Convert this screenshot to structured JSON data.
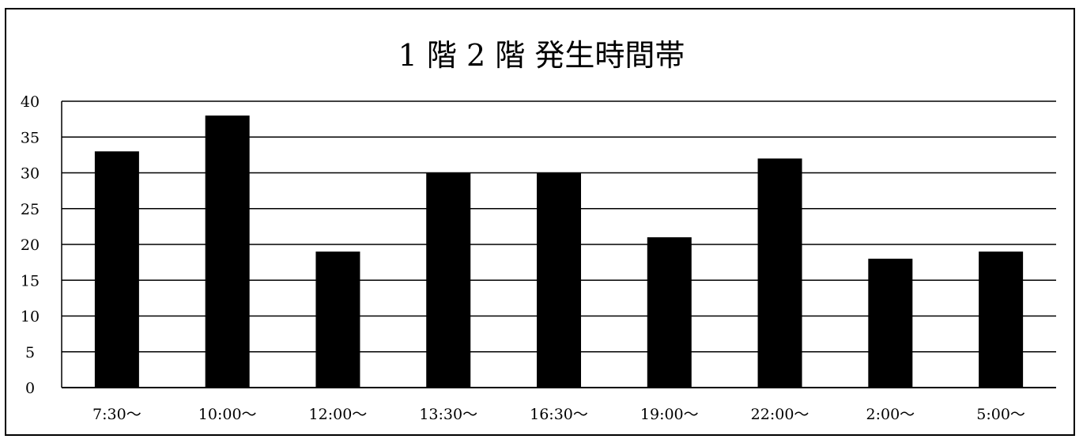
{
  "chart_data": {
    "type": "bar",
    "title": "1 階 2 階 発生時間帯",
    "categories": [
      "7:30～",
      "10:00～",
      "12:00～",
      "13:30～",
      "16:30～",
      "19:00～",
      "22:00～",
      "2:00～",
      "5:00～"
    ],
    "series": [
      {
        "values": [
          33,
          38,
          19,
          30,
          30,
          21,
          32,
          18,
          19
        ]
      }
    ],
    "ylim": [
      0,
      40
    ],
    "yticks": [
      0,
      5,
      10,
      15,
      20,
      25,
      30,
      35,
      40
    ],
    "grid": true,
    "bar_color": "#000000",
    "grid_color": "#000000"
  }
}
